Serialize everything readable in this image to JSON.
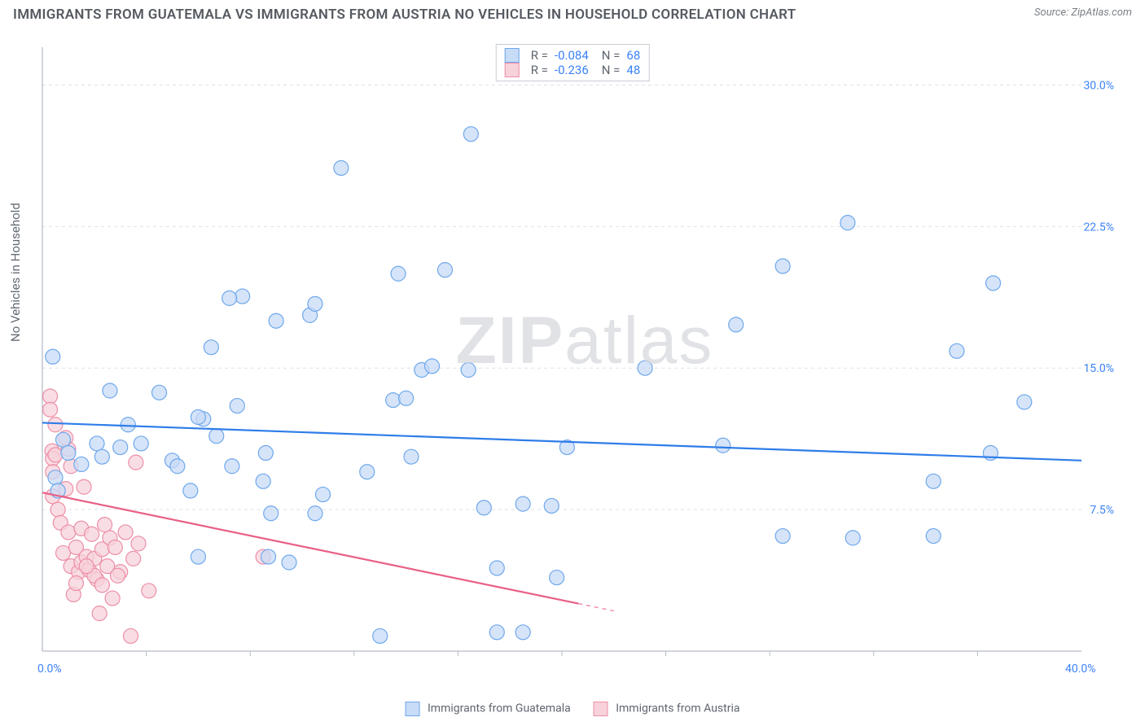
{
  "title": "IMMIGRANTS FROM GUATEMALA VS IMMIGRANTS FROM AUSTRIA NO VEHICLES IN HOUSEHOLD CORRELATION CHART",
  "source": "Source: ZipAtlas.com",
  "watermark": "ZIPatlas",
  "ylabel": "No Vehicles in Household",
  "chart": {
    "type": "scatter",
    "background": "#ffffff",
    "grid_color": "#dde1e8",
    "axis_color": "#b6bcc6",
    "xlim": [
      0,
      40
    ],
    "ylim": [
      0,
      32
    ],
    "x_origin_label": "0.0%",
    "x_max_label": "40.0%",
    "y_ticks": [
      7.5,
      15.0,
      22.5,
      30.0
    ],
    "y_tick_labels": [
      "7.5%",
      "15.0%",
      "22.5%",
      "30.0%"
    ],
    "x_minor_ticks": [
      4,
      8,
      12,
      16,
      20,
      24,
      28,
      32,
      36
    ],
    "marker_radius": 9,
    "marker_stroke_width": 1.2,
    "trend_line_width": 2.2
  },
  "series": [
    {
      "name": "Immigrants from Guatemala",
      "legend_label": "Immigrants from Guatemala",
      "r_value": "-0.084",
      "n_value": "68",
      "fill": "#c8dbf7",
      "stroke": "#6ea8ec",
      "trend_color": "#2e7de9",
      "trend": {
        "y_at_xmin": 12.1,
        "y_at_xmax": 10.1
      },
      "points": [
        [
          0.4,
          15.6
        ],
        [
          0.5,
          9.2
        ],
        [
          0.8,
          11.2
        ],
        [
          1.0,
          10.5
        ],
        [
          2.1,
          11.0
        ],
        [
          2.3,
          10.3
        ],
        [
          2.6,
          13.8
        ],
        [
          3.0,
          10.8
        ],
        [
          3.3,
          12.0
        ],
        [
          3.8,
          11.0
        ],
        [
          4.5,
          13.7
        ],
        [
          5.0,
          10.1
        ],
        [
          5.7,
          8.5
        ],
        [
          6.0,
          5.0
        ],
        [
          6.2,
          12.3
        ],
        [
          6.5,
          16.1
        ],
        [
          6.7,
          11.4
        ],
        [
          7.3,
          9.8
        ],
        [
          7.5,
          13.0
        ],
        [
          7.7,
          18.8
        ],
        [
          8.5,
          9.0
        ],
        [
          8.6,
          10.5
        ],
        [
          8.7,
          5.0
        ],
        [
          9.0,
          17.5
        ],
        [
          9.5,
          4.7
        ],
        [
          10.3,
          17.8
        ],
        [
          10.5,
          7.3
        ],
        [
          10.5,
          18.4
        ],
        [
          10.8,
          8.3
        ],
        [
          11.5,
          25.6
        ],
        [
          12.5,
          9.5
        ],
        [
          13.0,
          0.8
        ],
        [
          13.5,
          13.3
        ],
        [
          13.7,
          20.0
        ],
        [
          14.2,
          10.3
        ],
        [
          14.6,
          14.9
        ],
        [
          15.0,
          15.1
        ],
        [
          15.5,
          20.2
        ],
        [
          16.4,
          14.9
        ],
        [
          16.5,
          27.4
        ],
        [
          17.0,
          7.6
        ],
        [
          17.5,
          1.0
        ],
        [
          17.5,
          4.4
        ],
        [
          18.5,
          7.8
        ],
        [
          18.5,
          1.0
        ],
        [
          19.6,
          7.7
        ],
        [
          19.8,
          3.9
        ],
        [
          20.2,
          10.8
        ],
        [
          23.2,
          15.0
        ],
        [
          26.2,
          10.9
        ],
        [
          26.7,
          17.3
        ],
        [
          28.5,
          6.1
        ],
        [
          31.0,
          22.7
        ],
        [
          31.2,
          6.0
        ],
        [
          34.3,
          9.0
        ],
        [
          34.3,
          6.1
        ],
        [
          35.2,
          15.9
        ],
        [
          36.5,
          10.5
        ],
        [
          36.6,
          19.5
        ],
        [
          37.8,
          13.2
        ],
        [
          28.5,
          20.4
        ],
        [
          5.2,
          9.8
        ],
        [
          14.0,
          13.4
        ],
        [
          7.2,
          18.7
        ],
        [
          6.0,
          12.4
        ],
        [
          1.5,
          9.9
        ],
        [
          0.6,
          8.5
        ],
        [
          8.8,
          7.3
        ]
      ]
    },
    {
      "name": "Immigrants from Austria",
      "legend_label": "Immigrants from Austria",
      "r_value": "-0.236",
      "n_value": "48",
      "fill": "#f7d2db",
      "stroke": "#ec8fa6",
      "trend_color": "#e95f85",
      "trend": {
        "y_at_xmin": 8.4,
        "y_at_xmax": -3.0
      },
      "points": [
        [
          0.3,
          13.5
        ],
        [
          0.3,
          12.8
        ],
        [
          0.38,
          10.6
        ],
        [
          0.4,
          10.2
        ],
        [
          0.4,
          9.5
        ],
        [
          0.4,
          8.2
        ],
        [
          0.5,
          10.4
        ],
        [
          0.5,
          12.0
        ],
        [
          0.6,
          7.5
        ],
        [
          0.7,
          6.8
        ],
        [
          0.8,
          5.2
        ],
        [
          0.9,
          8.6
        ],
        [
          1.0,
          6.3
        ],
        [
          1.0,
          10.7
        ],
        [
          1.1,
          4.5
        ],
        [
          1.1,
          9.8
        ],
        [
          1.2,
          3.0
        ],
        [
          1.3,
          5.5
        ],
        [
          1.4,
          4.2
        ],
        [
          1.5,
          6.5
        ],
        [
          1.5,
          4.7
        ],
        [
          1.7,
          5.0
        ],
        [
          1.8,
          4.3
        ],
        [
          1.9,
          6.2
        ],
        [
          2.0,
          4.9
        ],
        [
          2.1,
          3.8
        ],
        [
          2.2,
          2.0
        ],
        [
          2.3,
          5.4
        ],
        [
          2.5,
          4.5
        ],
        [
          2.6,
          6.0
        ],
        [
          2.7,
          2.8
        ],
        [
          2.8,
          5.5
        ],
        [
          3.0,
          4.2
        ],
        [
          3.2,
          6.3
        ],
        [
          3.4,
          0.8
        ],
        [
          3.5,
          4.9
        ],
        [
          3.6,
          10.0
        ],
        [
          3.7,
          5.7
        ],
        [
          4.1,
          3.2
        ],
        [
          1.6,
          8.7
        ],
        [
          0.9,
          11.3
        ],
        [
          1.3,
          3.6
        ],
        [
          2.4,
          6.7
        ],
        [
          2.0,
          4.0
        ],
        [
          8.5,
          5.0
        ],
        [
          1.7,
          4.5
        ],
        [
          2.3,
          3.5
        ],
        [
          2.9,
          4.0
        ]
      ]
    }
  ]
}
